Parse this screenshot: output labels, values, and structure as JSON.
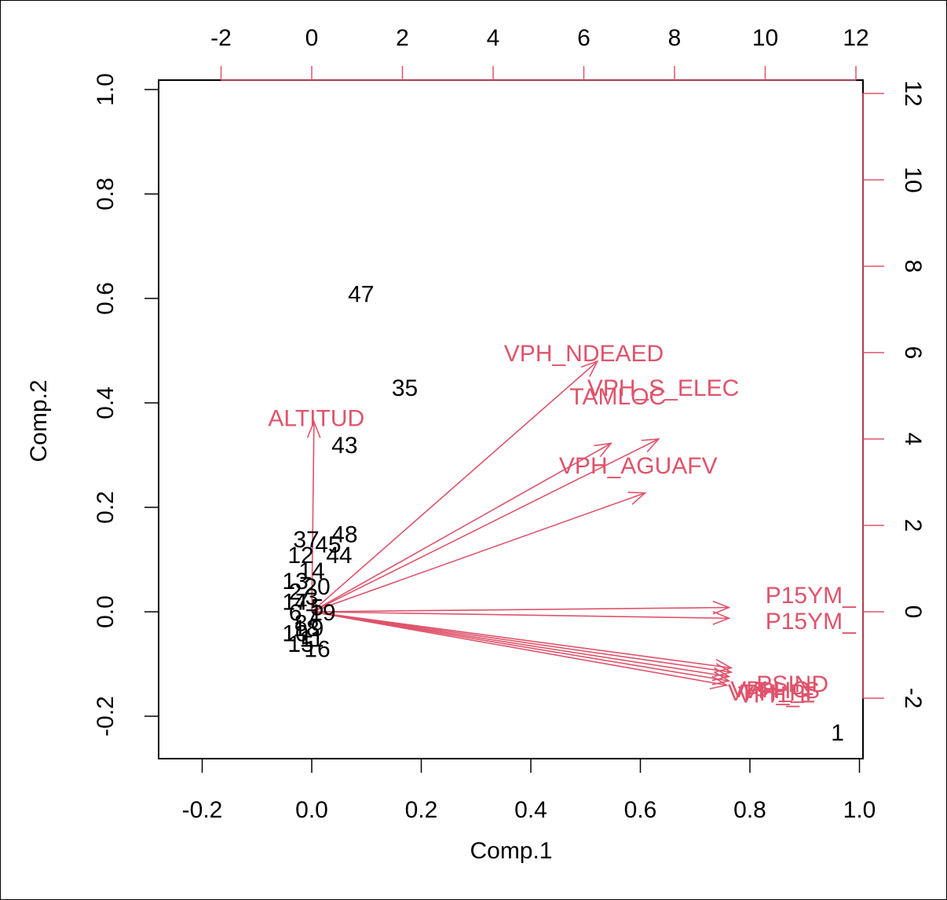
{
  "chart_data": {
    "type": "scatter",
    "subtype": "biplot",
    "title": "",
    "xlabel": "Comp.1",
    "ylabel": "Comp.2",
    "xlim": [
      -0.2,
      1.0
    ],
    "ylim": [
      -0.2,
      1.0
    ],
    "x_ticks": [
      "-0.2",
      "0.0",
      "0.2",
      "0.4",
      "0.6",
      "0.8",
      "1.0"
    ],
    "y_ticks": [
      "-0.2",
      "0.0",
      "0.2",
      "0.4",
      "0.6",
      "0.8",
      "1.0"
    ],
    "top_axis_range": [
      -2,
      12
    ],
    "top_ticks": [
      "-2",
      "0",
      "2",
      "4",
      "6",
      "8",
      "10",
      "12"
    ],
    "right_axis_range": [
      -2,
      12
    ],
    "right_ticks": [
      "-2",
      "0",
      "2",
      "4",
      "6",
      "8",
      "10",
      "12"
    ],
    "grid": false,
    "colors": {
      "points": "#000000",
      "loadings": "#DF536B",
      "axes": "#000000"
    },
    "observations": [
      {
        "label": "47",
        "x": 0.09,
        "y": 0.61
      },
      {
        "label": "35",
        "x": 0.17,
        "y": 0.43
      },
      {
        "label": "43",
        "x": 0.06,
        "y": 0.32
      },
      {
        "label": "48",
        "x": 0.06,
        "y": 0.15
      },
      {
        "label": "37",
        "x": -0.01,
        "y": 0.14
      },
      {
        "label": "45",
        "x": 0.03,
        "y": 0.13
      },
      {
        "label": "44",
        "x": 0.05,
        "y": 0.11
      },
      {
        "label": "12",
        "x": -0.02,
        "y": 0.11
      },
      {
        "label": "1",
        "x": 0.96,
        "y": -0.23
      },
      {
        "label": "14",
        "x": 0.0,
        "y": 0.08
      },
      {
        "label": "13",
        "x": -0.03,
        "y": 0.06
      },
      {
        "label": "20",
        "x": 0.01,
        "y": 0.05
      },
      {
        "label": "2",
        "x": -0.03,
        "y": 0.04
      },
      {
        "label": "3",
        "x": 0.0,
        "y": 0.03
      },
      {
        "label": "4",
        "x": -0.02,
        "y": 0.02
      },
      {
        "label": "5",
        "x": 0.01,
        "y": 0.01
      },
      {
        "label": "6",
        "x": -0.03,
        "y": 0.0
      },
      {
        "label": "7",
        "x": 0.0,
        "y": -0.01
      },
      {
        "label": "8",
        "x": -0.02,
        "y": -0.02
      },
      {
        "label": "9",
        "x": 0.01,
        "y": -0.03
      },
      {
        "label": "10",
        "x": -0.03,
        "y": -0.04
      },
      {
        "label": "11",
        "x": 0.0,
        "y": -0.05
      },
      {
        "label": "15",
        "x": -0.02,
        "y": -0.06
      },
      {
        "label": "16",
        "x": 0.01,
        "y": -0.07
      },
      {
        "label": "17",
        "x": -0.03,
        "y": 0.02
      },
      {
        "label": "18",
        "x": -0.01,
        "y": -0.03
      },
      {
        "label": "19",
        "x": 0.02,
        "y": 0.0
      }
    ],
    "loadings": [
      {
        "label": "VPH_NDEAED",
        "x": 6.0,
        "y": 6.0
      },
      {
        "label": "VPH_S_ELEC",
        "x": 7.75,
        "y": 5.2
      },
      {
        "label": "TAMLOC",
        "x": 6.75,
        "y": 5.0
      },
      {
        "label": "VPH_AGUAFV",
        "x": 7.2,
        "y": 3.4
      },
      {
        "label": "ALTITUD",
        "x": 0.1,
        "y": 4.5
      },
      {
        "label": "P15YM_",
        "x": 11.0,
        "y": 0.4
      },
      {
        "label": "P15YM_",
        "x": 11.0,
        "y": -0.2
      },
      {
        "label": "PSIND",
        "x": 10.6,
        "y": -1.65
      },
      {
        "label": "VPH_PI",
        "x": 10.1,
        "y": -1.85
      },
      {
        "label": "VPH_S",
        "x": 10.35,
        "y": -1.8
      },
      {
        "label": "VPH_C",
        "x": 10.1,
        "y": -1.78
      },
      {
        "label": "VPH_E",
        "x": 10.25,
        "y": -1.9
      }
    ],
    "loading_arrows": [
      {
        "x": 6.3,
        "y": 5.8
      },
      {
        "x": 7.65,
        "y": 4.0
      },
      {
        "x": 6.6,
        "y": 3.9
      },
      {
        "x": 7.35,
        "y": 2.75
      },
      {
        "x": 0.05,
        "y": 4.4
      },
      {
        "x": 9.2,
        "y": 0.1
      },
      {
        "x": 9.2,
        "y": -0.15
      },
      {
        "x": 9.25,
        "y": -1.3
      },
      {
        "x": 9.25,
        "y": -1.4
      },
      {
        "x": 9.2,
        "y": -1.5
      },
      {
        "x": 9.2,
        "y": -1.6
      },
      {
        "x": 9.15,
        "y": -1.7
      }
    ]
  }
}
